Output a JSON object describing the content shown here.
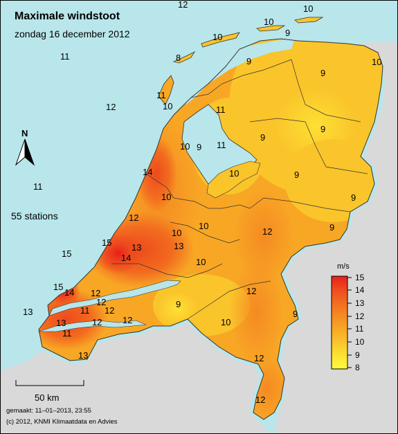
{
  "title": "Maximale windstoot",
  "subtitle": "zondag 16 december 2012",
  "stations_label": "55 stations",
  "north_label": "N",
  "scale_label": "50 km",
  "made_label": "gemaakt: 11–01–2013, 23:55",
  "copyright": "(c) 2012, KNMI Klimaatdata en Advies",
  "legend": {
    "unit": "m/s",
    "levels": [
      "15",
      "14",
      "13",
      "12",
      "11",
      "10",
      "9",
      "8"
    ],
    "colors": [
      "#e8201a",
      "#ee4a1e",
      "#f26b1f",
      "#f58a22",
      "#f8a725",
      "#fac42b",
      "#fde033",
      "#fffb3c"
    ]
  },
  "colors": {
    "sea": "#b8e6ea",
    "foreign_land": "#d9d9d9",
    "border": "#333333"
  },
  "station_labels": {
    "s1": "12",
    "s2": "10",
    "s3": "10",
    "s4": "9",
    "s5": "11",
    "s6": "8",
    "s7": "10",
    "s8": "9",
    "s9": "10",
    "s10": "11",
    "s11": "9",
    "s12": "11",
    "s13": "10",
    "s14": "12",
    "s15": "9",
    "s16": "10",
    "s17": "9",
    "s18": "11",
    "s19": "14",
    "s20": "10",
    "s21": "10",
    "s22": "9",
    "s23": "11",
    "s24": "10",
    "s25": "12",
    "s26": "10",
    "s27": "12",
    "s28": "13",
    "s29": "9",
    "s30": "15",
    "s31": "13",
    "s32": "14",
    "s33": "15",
    "s34": "10",
    "s35": "15",
    "s36": "14",
    "s37": "12",
    "s38": "12",
    "s39": "9",
    "s40": "12",
    "s41": "11",
    "s42": "12",
    "s43": "13",
    "s44": "13",
    "s45": "12",
    "s46": "11",
    "s47": "12",
    "s48": "9",
    "s49": "10",
    "s50": "12",
    "s51": "12",
    "s52": "13"
  }
}
